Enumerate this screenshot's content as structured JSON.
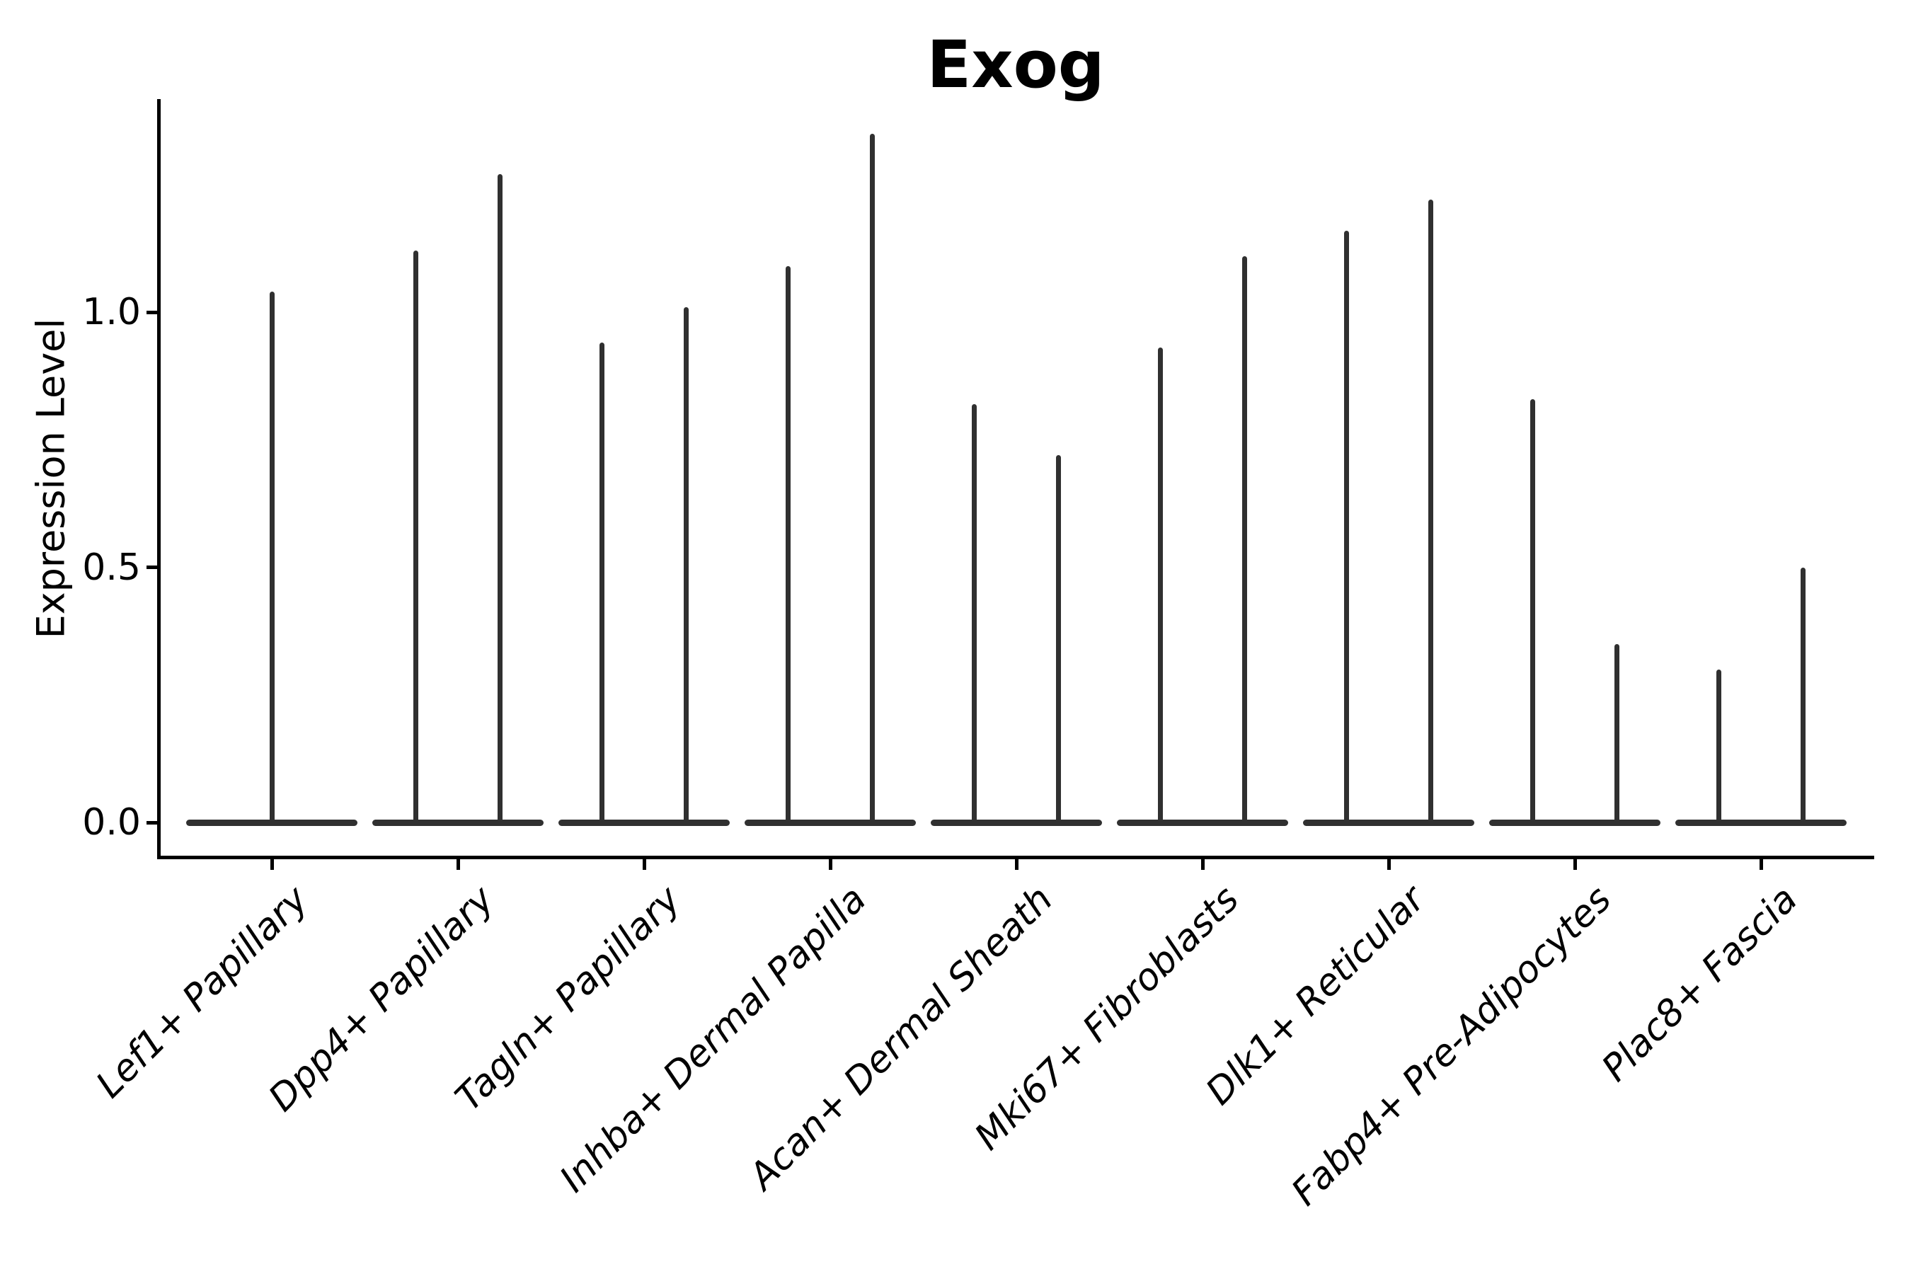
{
  "chart_data": {
    "type": "violin",
    "title": "Exog",
    "xlabel": "",
    "ylabel": "Expression Level",
    "yticks": [
      0.0,
      0.5,
      1.0
    ],
    "ytick_labels": [
      "0.0",
      "0.5",
      "1.0"
    ],
    "ylim": [
      -0.07,
      1.41
    ],
    "grid": false,
    "legend_position": "none",
    "categories": [
      "Lef1+ Papillary",
      "Dpp4+ Papillary",
      "Tagln+ Papillary",
      "Inhba+ Dermal Papilla",
      "Acan+ Dermal Sheath",
      "Mki67+ Fibroblasts",
      "Dlk1+ Reticular",
      "Fabp4+ Pre-Adipocytes",
      "Plac8+ Fascia"
    ],
    "violins": [
      {
        "category": "Lef1+ Papillary",
        "spike_offsets": [
          0
        ],
        "spike_tops": [
          1.04
        ],
        "base_halfwidth": 0.46
      },
      {
        "category": "Dpp4+ Papillary",
        "spike_offsets": [
          -0.225,
          0.225
        ],
        "spike_tops": [
          1.12,
          1.27
        ],
        "base_halfwidth": 0.46
      },
      {
        "category": "Tagln+ Papillary",
        "spike_offsets": [
          -0.225,
          0.225
        ],
        "spike_tops": [
          0.94,
          1.01
        ],
        "base_halfwidth": 0.46
      },
      {
        "category": "Inhba+ Dermal Papilla",
        "spike_offsets": [
          -0.225,
          0.225
        ],
        "spike_tops": [
          1.09,
          1.35
        ],
        "base_halfwidth": 0.46
      },
      {
        "category": "Acan+ Dermal Sheath",
        "spike_offsets": [
          -0.225,
          0.225
        ],
        "spike_tops": [
          0.82,
          0.72
        ],
        "base_halfwidth": 0.46
      },
      {
        "category": "Mki67+ Fibroblasts",
        "spike_offsets": [
          -0.225,
          0.225
        ],
        "spike_tops": [
          0.93,
          1.11
        ],
        "base_halfwidth": 0.46
      },
      {
        "category": "Dlk1+ Reticular",
        "spike_offsets": [
          -0.225,
          0.225
        ],
        "spike_tops": [
          1.16,
          1.22
        ],
        "base_halfwidth": 0.46
      },
      {
        "category": "Fabp4+ Pre-Adipocytes",
        "spike_offsets": [
          -0.225,
          0.225
        ],
        "spike_tops": [
          0.83,
          0.35
        ],
        "base_halfwidth": 0.46
      },
      {
        "category": "Plac8+ Fascia",
        "spike_offsets": [
          -0.225,
          0.225
        ],
        "spike_tops": [
          0.3,
          0.5
        ],
        "base_halfwidth": 0.46
      }
    ],
    "colors": {
      "violin": "#303030",
      "axis": "#000000",
      "text": "#000000",
      "background": "#ffffff"
    }
  }
}
